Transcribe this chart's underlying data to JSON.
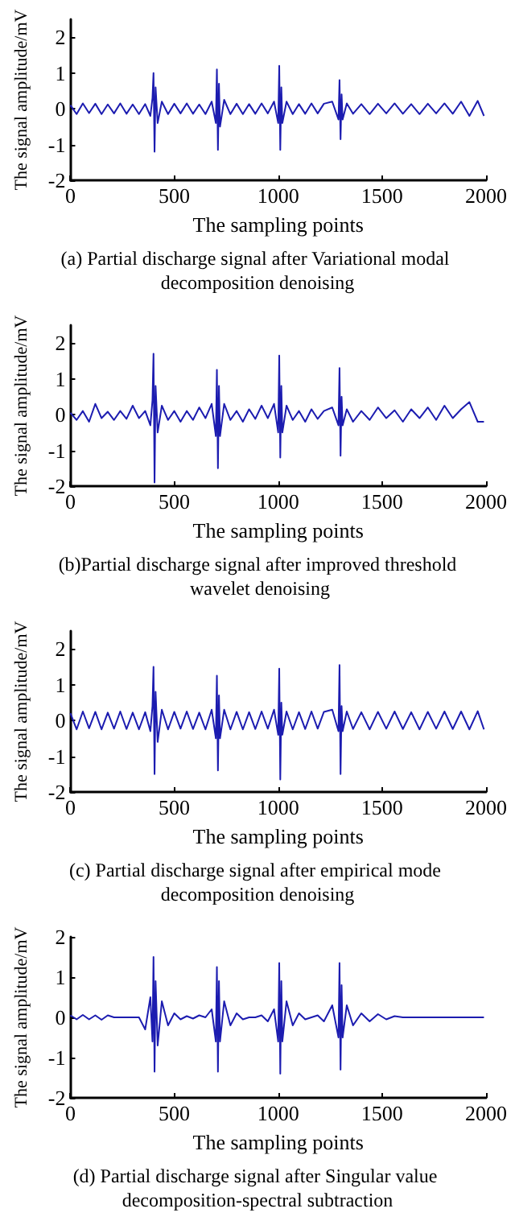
{
  "chart_data": [
    {
      "type": "line",
      "title": "(a) Partial discharge signal after Variational modal decomposition denoising",
      "xlabel": "The sampling points",
      "ylabel": "The signal amplitude/mV",
      "xlim": [
        0,
        2000
      ],
      "xticks": [
        0,
        500,
        1000,
        1500,
        2000
      ],
      "ylim": [
        -2,
        2.5
      ],
      "yticks": [
        -2,
        -1,
        0,
        1,
        2
      ],
      "grid": false,
      "marker": "none",
      "line_style": "solid",
      "x": [
        0,
        30,
        60,
        90,
        120,
        150,
        180,
        210,
        240,
        270,
        300,
        330,
        360,
        385,
        395,
        400,
        405,
        410,
        420,
        440,
        470,
        500,
        530,
        560,
        590,
        620,
        650,
        680,
        700,
        705,
        710,
        715,
        720,
        740,
        770,
        800,
        830,
        860,
        890,
        920,
        950,
        980,
        1000,
        1005,
        1010,
        1015,
        1020,
        1040,
        1070,
        1100,
        1130,
        1160,
        1190,
        1220,
        1260,
        1290,
        1295,
        1300,
        1305,
        1310,
        1330,
        1360,
        1400,
        1440,
        1480,
        1520,
        1560,
        1600,
        1640,
        1680,
        1720,
        1760,
        1800,
        1840,
        1880,
        1920,
        1960,
        1990
      ],
      "series": [
        {
          "color": "#1c1cb0",
          "values": [
            0.1,
            -0.15,
            0.15,
            -0.12,
            0.14,
            -0.15,
            0.12,
            -0.13,
            0.15,
            -0.14,
            0.12,
            -0.15,
            0.13,
            -0.2,
            0.3,
            1.0,
            -1.2,
            0.6,
            -0.4,
            0.2,
            -0.15,
            0.14,
            -0.13,
            0.15,
            -0.14,
            0.12,
            -0.15,
            0.2,
            -0.4,
            1.1,
            -1.15,
            0.7,
            -0.5,
            0.25,
            -0.15,
            0.14,
            -0.15,
            0.13,
            -0.14,
            0.15,
            -0.13,
            0.2,
            -0.4,
            1.2,
            -1.15,
            0.6,
            -0.4,
            0.2,
            -0.15,
            0.13,
            -0.14,
            0.15,
            -0.13,
            0.14,
            0.2,
            -0.3,
            0.8,
            -0.85,
            0.4,
            -0.3,
            0.15,
            -0.14,
            0.13,
            -0.15,
            0.14,
            -0.13,
            0.15,
            -0.14,
            0.13,
            -0.15,
            0.14,
            -0.13,
            0.15,
            -0.14,
            0.2,
            -0.2,
            0.22,
            -0.2
          ]
        }
      ]
    },
    {
      "type": "line",
      "title": "(b)Partial discharge signal after improved threshold wavelet denoising",
      "xlabel": "The sampling points",
      "ylabel": "The signal amplitude/mV",
      "xlim": [
        0,
        2000
      ],
      "xticks": [
        0,
        500,
        1000,
        1500,
        2000
      ],
      "ylim": [
        -2,
        2.5
      ],
      "yticks": [
        -2,
        -1,
        0,
        1,
        2
      ],
      "grid": false,
      "marker": "none",
      "line_style": "solid",
      "x": [
        0,
        30,
        60,
        90,
        120,
        150,
        180,
        210,
        240,
        270,
        300,
        330,
        360,
        385,
        395,
        400,
        405,
        410,
        420,
        440,
        470,
        500,
        530,
        560,
        590,
        620,
        650,
        680,
        700,
        705,
        710,
        715,
        720,
        740,
        770,
        800,
        830,
        860,
        890,
        920,
        950,
        980,
        1000,
        1005,
        1010,
        1015,
        1020,
        1040,
        1070,
        1100,
        1130,
        1160,
        1190,
        1220,
        1260,
        1290,
        1295,
        1300,
        1305,
        1310,
        1330,
        1360,
        1400,
        1440,
        1480,
        1520,
        1560,
        1600,
        1640,
        1680,
        1720,
        1760,
        1800,
        1840,
        1880,
        1920,
        1960,
        1990
      ],
      "series": [
        {
          "color": "#1c1cb0",
          "values": [
            0.05,
            -0.15,
            0.1,
            -0.2,
            0.3,
            -0.1,
            0.08,
            -0.15,
            0.1,
            -0.12,
            0.25,
            -0.1,
            0.1,
            -0.3,
            0.4,
            1.7,
            -1.9,
            0.8,
            -0.5,
            0.25,
            -0.15,
            0.1,
            -0.2,
            0.1,
            -0.15,
            0.2,
            -0.1,
            0.3,
            -0.6,
            1.25,
            -1.5,
            0.8,
            -0.6,
            0.3,
            -0.15,
            0.1,
            -0.2,
            0.15,
            -0.12,
            0.25,
            -0.1,
            0.3,
            -0.5,
            1.65,
            -1.2,
            0.8,
            -0.5,
            0.25,
            -0.15,
            0.1,
            -0.2,
            0.15,
            -0.12,
            0.1,
            0.2,
            -0.3,
            1.3,
            -1.15,
            0.5,
            -0.3,
            0.15,
            -0.2,
            0.1,
            -0.15,
            0.2,
            -0.1,
            0.12,
            -0.2,
            0.15,
            -0.1,
            0.2,
            -0.15,
            0.25,
            -0.1,
            0.15,
            0.35,
            -0.2,
            -0.2
          ]
        }
      ]
    },
    {
      "type": "line",
      "title": "(c) Partial discharge signal after empirical mode decomposition denoising",
      "xlabel": "The sampling points",
      "ylabel": "The signal amplitude/mV",
      "xlim": [
        0,
        2000
      ],
      "xticks": [
        0,
        500,
        1000,
        1500,
        2000
      ],
      "ylim": [
        -2,
        2.5
      ],
      "yticks": [
        -2,
        -1,
        0,
        1,
        2
      ],
      "grid": false,
      "marker": "none",
      "line_style": "solid",
      "x": [
        0,
        30,
        60,
        90,
        120,
        150,
        180,
        210,
        240,
        270,
        300,
        330,
        360,
        385,
        395,
        400,
        405,
        410,
        420,
        440,
        470,
        500,
        530,
        560,
        590,
        620,
        650,
        680,
        700,
        705,
        710,
        715,
        720,
        740,
        770,
        800,
        830,
        860,
        890,
        920,
        950,
        980,
        1000,
        1005,
        1010,
        1015,
        1020,
        1040,
        1070,
        1100,
        1130,
        1160,
        1190,
        1220,
        1260,
        1290,
        1295,
        1300,
        1305,
        1310,
        1330,
        1360,
        1400,
        1440,
        1480,
        1520,
        1560,
        1600,
        1640,
        1680,
        1720,
        1760,
        1800,
        1840,
        1880,
        1920,
        1960,
        1990
      ],
      "series": [
        {
          "color": "#1c1cb0",
          "values": [
            0.2,
            -0.25,
            0.25,
            -0.22,
            0.24,
            -0.25,
            0.22,
            -0.23,
            0.25,
            -0.24,
            0.22,
            -0.25,
            0.23,
            -0.3,
            0.4,
            1.5,
            -1.5,
            0.8,
            -0.6,
            0.3,
            -0.25,
            0.24,
            -0.23,
            0.25,
            -0.24,
            0.22,
            -0.25,
            0.3,
            -0.5,
            1.25,
            -1.4,
            0.7,
            -0.5,
            0.3,
            -0.25,
            0.24,
            -0.25,
            0.23,
            -0.24,
            0.25,
            -0.23,
            0.3,
            -0.4,
            1.45,
            -1.65,
            0.5,
            -0.4,
            0.25,
            -0.25,
            0.23,
            -0.24,
            0.25,
            -0.23,
            0.24,
            0.3,
            -0.3,
            1.55,
            -1.5,
            0.4,
            -0.3,
            0.25,
            -0.24,
            0.23,
            -0.25,
            0.24,
            -0.23,
            0.25,
            -0.24,
            0.23,
            -0.25,
            0.24,
            -0.23,
            0.25,
            -0.24,
            0.25,
            -0.25,
            0.26,
            -0.25
          ]
        }
      ]
    },
    {
      "type": "line",
      "title": "(d) Partial discharge signal after Singular value decomposition-spectral subtraction",
      "xlabel": "The sampling points",
      "ylabel": "The signal amplitude/mV",
      "xlim": [
        0,
        2000
      ],
      "xticks": [
        0,
        500,
        1000,
        1500,
        2000
      ],
      "ylim": [
        -2,
        2
      ],
      "yticks": [
        -2,
        -1,
        0,
        1,
        2
      ],
      "grid": false,
      "marker": "none",
      "line_style": "solid",
      "x": [
        0,
        30,
        60,
        90,
        120,
        150,
        180,
        210,
        240,
        270,
        300,
        330,
        360,
        385,
        395,
        400,
        405,
        410,
        420,
        440,
        470,
        500,
        530,
        560,
        590,
        620,
        650,
        680,
        700,
        705,
        710,
        715,
        720,
        740,
        770,
        800,
        830,
        860,
        890,
        920,
        950,
        980,
        1000,
        1005,
        1010,
        1015,
        1020,
        1040,
        1070,
        1100,
        1130,
        1160,
        1190,
        1220,
        1260,
        1290,
        1295,
        1300,
        1305,
        1310,
        1330,
        1360,
        1400,
        1440,
        1480,
        1520,
        1560,
        1600,
        1640,
        1680,
        1720,
        1760,
        1800,
        1840,
        1880,
        1920,
        1960,
        1990
      ],
      "series": [
        {
          "color": "#1c1cb0",
          "values": [
            0.05,
            -0.05,
            0.06,
            -0.05,
            0.05,
            -0.06,
            0.05,
            0,
            0,
            0,
            0,
            0,
            -0.3,
            0.5,
            -0.6,
            1.5,
            -1.35,
            0.9,
            -0.7,
            0.4,
            -0.2,
            0.1,
            -0.05,
            0.03,
            -0.03,
            0.05,
            0,
            0.2,
            -0.6,
            1.25,
            -1.35,
            0.9,
            -0.6,
            0.4,
            -0.2,
            0.1,
            -0.05,
            0,
            0,
            0.05,
            -0.1,
            0.2,
            -0.6,
            1.35,
            -1.4,
            0.9,
            -0.6,
            0.4,
            -0.2,
            0.1,
            -0.05,
            0,
            0.05,
            -0.1,
            0.3,
            -0.5,
            1.35,
            -1.3,
            0.8,
            -0.5,
            0.3,
            -0.2,
            0.1,
            -0.1,
            0.08,
            -0.05,
            0.03,
            0,
            0,
            0,
            0,
            0,
            0,
            0,
            0,
            0,
            0,
            0
          ]
        }
      ]
    }
  ]
}
